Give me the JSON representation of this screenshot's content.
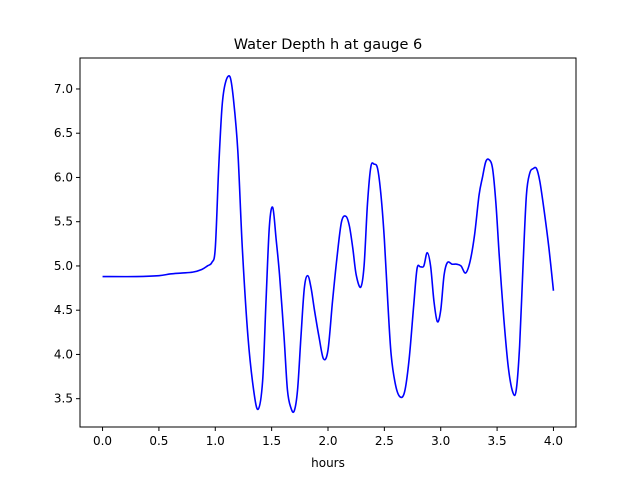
{
  "chart_data": {
    "type": "line",
    "title": "Water Depth h at gauge 6",
    "xlabel": "hours",
    "ylabel": "",
    "xlim": [
      -0.2,
      4.2
    ],
    "ylim": [
      3.18,
      7.35
    ],
    "xticks": [
      0.0,
      0.5,
      1.0,
      1.5,
      2.0,
      2.5,
      3.0,
      3.5,
      4.0
    ],
    "xtick_labels": [
      "0.0",
      "0.5",
      "1.0",
      "1.5",
      "2.0",
      "2.5",
      "3.0",
      "3.5",
      "4.0"
    ],
    "yticks": [
      3.5,
      4.0,
      4.5,
      5.0,
      5.5,
      6.0,
      6.5,
      7.0
    ],
    "ytick_labels": [
      "3.5",
      "4.0",
      "4.5",
      "5.0",
      "5.5",
      "6.0",
      "6.5",
      "7.0"
    ],
    "grid": false,
    "series": [
      {
        "color": "#0000ff",
        "x": [
          0.0,
          0.3,
          0.5,
          0.6,
          0.7,
          0.8,
          0.88,
          0.93,
          0.97,
          1.0,
          1.03,
          1.06,
          1.09,
          1.13,
          1.16,
          1.2,
          1.24,
          1.29,
          1.34,
          1.38,
          1.42,
          1.45,
          1.48,
          1.51,
          1.54,
          1.57,
          1.61,
          1.64,
          1.67,
          1.7,
          1.73,
          1.76,
          1.79,
          1.82,
          1.85,
          1.88,
          1.92,
          1.96,
          2.0,
          2.04,
          2.08,
          2.12,
          2.16,
          2.19,
          2.22,
          2.25,
          2.29,
          2.32,
          2.35,
          2.38,
          2.41,
          2.44,
          2.47,
          2.5,
          2.53,
          2.56,
          2.6,
          2.64,
          2.68,
          2.72,
          2.76,
          2.79,
          2.82,
          2.85,
          2.88,
          2.91,
          2.94,
          2.97,
          3.0,
          3.03,
          3.06,
          3.1,
          3.14,
          3.18,
          3.22,
          3.26,
          3.3,
          3.34,
          3.37,
          3.4,
          3.43,
          3.46,
          3.49,
          3.52,
          3.56,
          3.6,
          3.64,
          3.67,
          3.7,
          3.73,
          3.76,
          3.79,
          3.82,
          3.85,
          3.88,
          3.92,
          3.96,
          4.0
        ],
        "y": [
          4.88,
          4.88,
          4.89,
          4.91,
          4.92,
          4.93,
          4.96,
          5.0,
          5.04,
          5.2,
          6.1,
          6.8,
          7.07,
          7.14,
          6.9,
          6.3,
          5.2,
          4.2,
          3.6,
          3.38,
          3.7,
          4.6,
          5.45,
          5.66,
          5.3,
          4.9,
          4.2,
          3.6,
          3.4,
          3.36,
          3.6,
          4.2,
          4.75,
          4.89,
          4.75,
          4.5,
          4.2,
          3.95,
          4.05,
          4.6,
          5.1,
          5.5,
          5.56,
          5.45,
          5.2,
          4.9,
          4.76,
          5.0,
          5.7,
          6.12,
          6.15,
          6.1,
          5.8,
          5.3,
          4.6,
          4.0,
          3.65,
          3.52,
          3.58,
          3.95,
          4.55,
          4.97,
          4.99,
          5.0,
          5.15,
          5.0,
          4.6,
          4.37,
          4.5,
          4.9,
          5.04,
          5.02,
          5.02,
          5.0,
          4.92,
          5.05,
          5.35,
          5.8,
          6.0,
          6.18,
          6.2,
          6.1,
          5.7,
          5.1,
          4.4,
          3.85,
          3.57,
          3.6,
          4.1,
          5.0,
          5.8,
          6.05,
          6.1,
          6.1,
          5.95,
          5.6,
          5.2,
          4.72
        ]
      }
    ]
  }
}
